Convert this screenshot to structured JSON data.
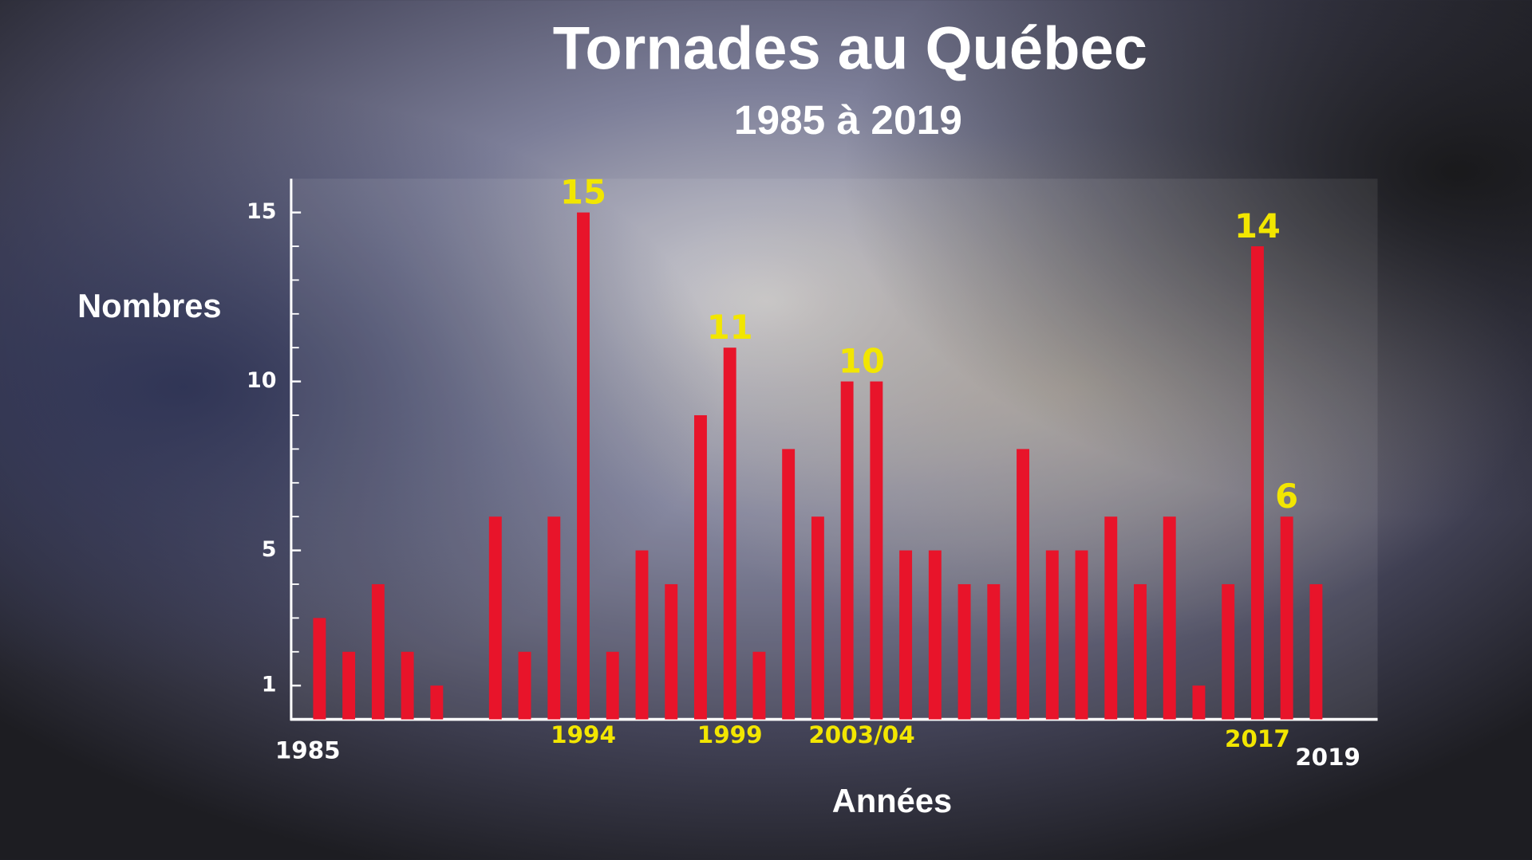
{
  "chart_data": {
    "type": "bar",
    "title": "Tornades au Québec",
    "subtitle": "1985 à 2019",
    "y_label": "Nombres",
    "x_label": "Années",
    "categories": [
      "1985",
      null,
      null,
      null,
      null,
      null,
      null,
      null,
      null,
      "1994",
      null,
      null,
      null,
      null,
      "1999",
      null,
      null,
      null,
      "2003/04",
      null,
      null,
      null,
      null,
      null,
      null,
      null,
      null,
      null,
      null,
      null,
      null,
      null,
      "2017",
      null,
      "2019"
    ],
    "values": [
      3,
      2,
      4,
      2,
      1,
      0,
      6,
      2,
      6,
      15,
      2,
      5,
      4,
      9,
      11,
      2,
      8,
      6,
      10,
      10,
      5,
      5,
      4,
      4,
      8,
      5,
      5,
      6,
      4,
      6,
      1,
      4,
      14,
      6,
      4
    ],
    "value_labels": [
      null,
      null,
      null,
      null,
      null,
      null,
      null,
      null,
      null,
      "15",
      null,
      null,
      null,
      null,
      "11",
      null,
      null,
      null,
      "10",
      null,
      null,
      null,
      null,
      null,
      null,
      null,
      null,
      null,
      null,
      null,
      null,
      null,
      "14",
      "6",
      null
    ],
    "color": "#e8142a",
    "highlight_color": "#f2e600",
    "ylim": [
      0,
      16
    ],
    "yticks": [
      1,
      5,
      10,
      15
    ],
    "yminorticks": [
      2,
      3,
      4,
      6,
      7,
      8,
      9,
      11,
      12,
      13,
      14
    ]
  }
}
